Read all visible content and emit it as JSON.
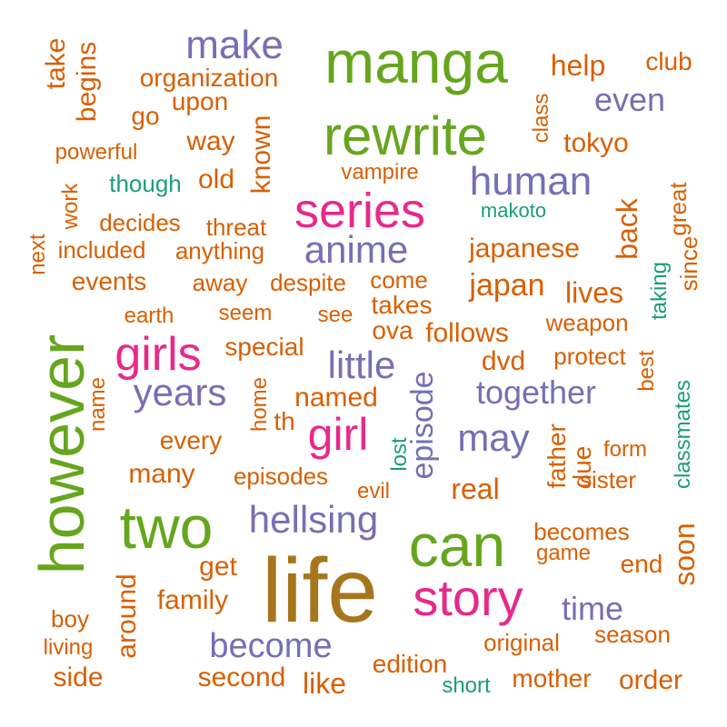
{
  "palette": {
    "orange": "#d95f02",
    "green": "#66a61e",
    "purple": "#7570b3",
    "pink": "#e7298a",
    "brown": "#a6761d",
    "teal": "#1b9e77"
  },
  "words": [
    {
      "text": "life",
      "color": "brown"
    },
    {
      "text": "manga",
      "color": "green"
    },
    {
      "text": "however",
      "color": "green"
    },
    {
      "text": "rewrite",
      "color": "green"
    },
    {
      "text": "two",
      "color": "green"
    },
    {
      "text": "can",
      "color": "green"
    },
    {
      "text": "story",
      "color": "pink"
    },
    {
      "text": "series",
      "color": "pink"
    },
    {
      "text": "girls",
      "color": "pink"
    },
    {
      "text": "girl",
      "color": "pink"
    },
    {
      "text": "make",
      "color": "purple"
    },
    {
      "text": "human",
      "color": "purple"
    },
    {
      "text": "anime",
      "color": "purple"
    },
    {
      "text": "years",
      "color": "purple"
    },
    {
      "text": "hellsing",
      "color": "purple"
    },
    {
      "text": "become",
      "color": "purple"
    },
    {
      "text": "together",
      "color": "purple"
    },
    {
      "text": "little",
      "color": "purple"
    },
    {
      "text": "may",
      "color": "purple"
    },
    {
      "text": "even",
      "color": "purple"
    },
    {
      "text": "time",
      "color": "purple"
    },
    {
      "text": "episode",
      "color": "purple"
    },
    {
      "text": "take",
      "color": "orange"
    },
    {
      "text": "begins",
      "color": "orange"
    },
    {
      "text": "organization",
      "color": "orange"
    },
    {
      "text": "help",
      "color": "orange"
    },
    {
      "text": "club",
      "color": "orange"
    },
    {
      "text": "upon",
      "color": "orange"
    },
    {
      "text": "go",
      "color": "orange"
    },
    {
      "text": "class",
      "color": "orange"
    },
    {
      "text": "known",
      "color": "orange"
    },
    {
      "text": "powerful",
      "color": "orange"
    },
    {
      "text": "way",
      "color": "orange"
    },
    {
      "text": "tokyo",
      "color": "orange"
    },
    {
      "text": "vampire",
      "color": "orange"
    },
    {
      "text": "old",
      "color": "orange"
    },
    {
      "text": "work",
      "color": "orange"
    },
    {
      "text": "decides",
      "color": "orange"
    },
    {
      "text": "threat",
      "color": "orange"
    },
    {
      "text": "great",
      "color": "orange"
    },
    {
      "text": "back",
      "color": "orange"
    },
    {
      "text": "next",
      "color": "orange"
    },
    {
      "text": "included",
      "color": "orange"
    },
    {
      "text": "anything",
      "color": "orange"
    },
    {
      "text": "japanese",
      "color": "orange"
    },
    {
      "text": "since",
      "color": "orange"
    },
    {
      "text": "events",
      "color": "orange"
    },
    {
      "text": "away",
      "color": "orange"
    },
    {
      "text": "despite",
      "color": "orange"
    },
    {
      "text": "come",
      "color": "orange"
    },
    {
      "text": "japan",
      "color": "orange"
    },
    {
      "text": "lives",
      "color": "orange"
    },
    {
      "text": "takes",
      "color": "orange"
    },
    {
      "text": "earth",
      "color": "orange"
    },
    {
      "text": "seem",
      "color": "orange"
    },
    {
      "text": "see",
      "color": "orange"
    },
    {
      "text": "ova",
      "color": "orange"
    },
    {
      "text": "follows",
      "color": "orange"
    },
    {
      "text": "weapon",
      "color": "orange"
    },
    {
      "text": "special",
      "color": "orange"
    },
    {
      "text": "dvd",
      "color": "orange"
    },
    {
      "text": "protect",
      "color": "orange"
    },
    {
      "text": "best",
      "color": "orange"
    },
    {
      "text": "name",
      "color": "orange"
    },
    {
      "text": "home",
      "color": "orange"
    },
    {
      "text": "named",
      "color": "orange"
    },
    {
      "text": "th",
      "color": "orange"
    },
    {
      "text": "every",
      "color": "orange"
    },
    {
      "text": "father",
      "color": "orange"
    },
    {
      "text": "due",
      "color": "orange"
    },
    {
      "text": "form",
      "color": "orange"
    },
    {
      "text": "many",
      "color": "orange"
    },
    {
      "text": "episodes",
      "color": "orange"
    },
    {
      "text": "sister",
      "color": "orange"
    },
    {
      "text": "evil",
      "color": "orange"
    },
    {
      "text": "real",
      "color": "orange"
    },
    {
      "text": "becomes",
      "color": "orange"
    },
    {
      "text": "soon",
      "color": "orange"
    },
    {
      "text": "around",
      "color": "orange"
    },
    {
      "text": "get",
      "color": "orange"
    },
    {
      "text": "game",
      "color": "orange"
    },
    {
      "text": "end",
      "color": "orange"
    },
    {
      "text": "family",
      "color": "orange"
    },
    {
      "text": "boy",
      "color": "orange"
    },
    {
      "text": "living",
      "color": "orange"
    },
    {
      "text": "original",
      "color": "orange"
    },
    {
      "text": "season",
      "color": "orange"
    },
    {
      "text": "side",
      "color": "orange"
    },
    {
      "text": "second",
      "color": "orange"
    },
    {
      "text": "like",
      "color": "orange"
    },
    {
      "text": "edition",
      "color": "orange"
    },
    {
      "text": "mother",
      "color": "orange"
    },
    {
      "text": "order",
      "color": "orange"
    },
    {
      "text": "though",
      "color": "teal"
    },
    {
      "text": "makoto",
      "color": "teal"
    },
    {
      "text": "taking",
      "color": "teal"
    },
    {
      "text": "lost",
      "color": "teal"
    },
    {
      "text": "classmates",
      "color": "teal"
    },
    {
      "text": "short",
      "color": "teal"
    }
  ]
}
